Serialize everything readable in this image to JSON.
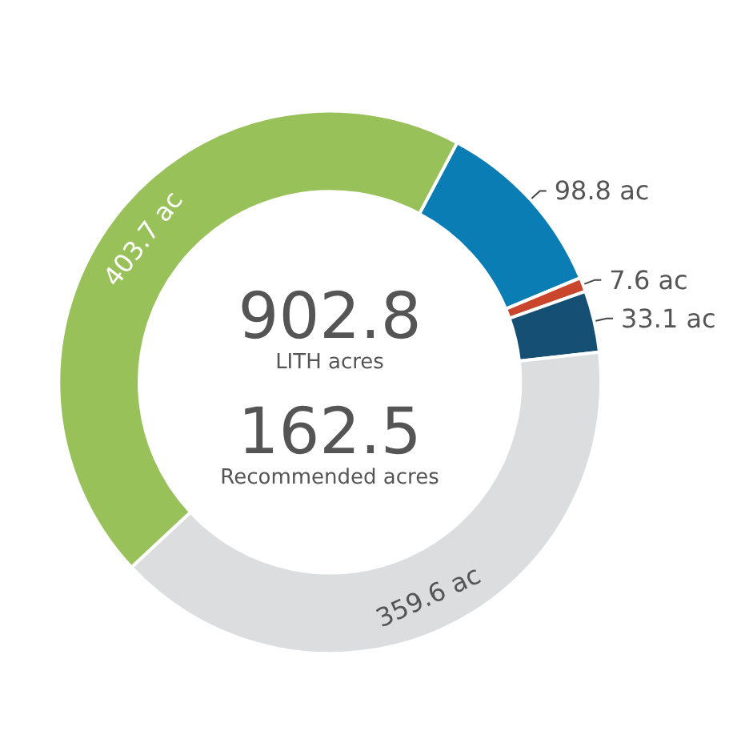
{
  "chart_data": {
    "type": "donut",
    "categories": [
      null,
      null,
      null,
      null,
      null
    ],
    "values": [
      98.8,
      7.6,
      33.1,
      359.6,
      403.7
    ],
    "colors": [
      "#0b7db5",
      "#c9452b",
      "#154f73",
      "#dcddde",
      "#98c15a"
    ],
    "value_labels": [
      "98.8 ac",
      "7.6 ac",
      "33.1 ac",
      "359.6 ac",
      "403.7 ac"
    ],
    "annotations": [
      "902.8",
      "LITH acres",
      "162.5",
      "Recommended acres"
    ],
    "legend": false
  }
}
